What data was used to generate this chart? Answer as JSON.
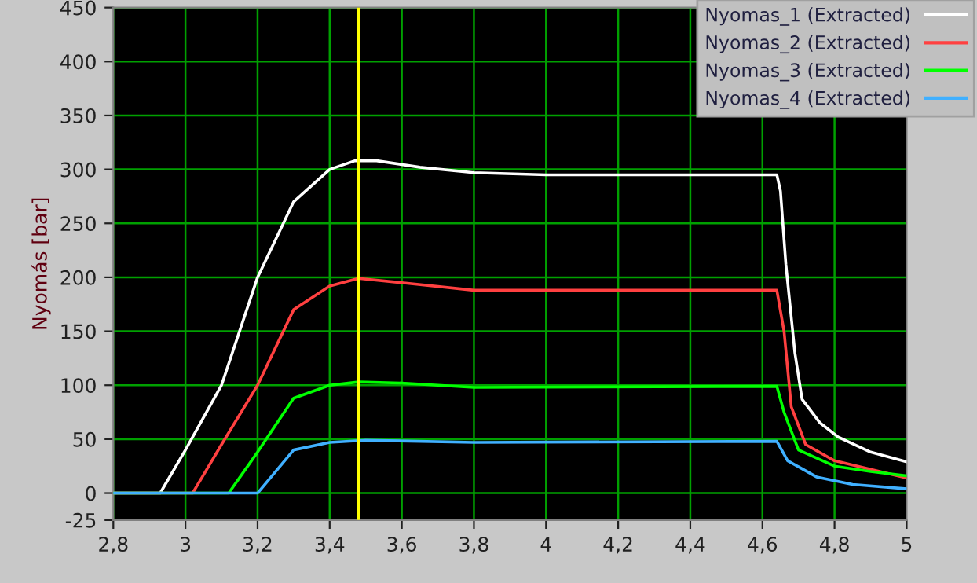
{
  "chart_data": {
    "type": "line",
    "ylabel": "Nyomás [bar]",
    "xlim": [
      2.8,
      5
    ],
    "ylim": [
      -25,
      450
    ],
    "xticks": [
      {
        "value": 2.8,
        "label": "2,8"
      },
      {
        "value": 3,
        "label": "3"
      },
      {
        "value": 3.2,
        "label": "3,2"
      },
      {
        "value": 3.4,
        "label": "3,4"
      },
      {
        "value": 3.6,
        "label": "3,6"
      },
      {
        "value": 3.8,
        "label": "3,8"
      },
      {
        "value": 4,
        "label": "4"
      },
      {
        "value": 4.2,
        "label": "4,2"
      },
      {
        "value": 4.4,
        "label": "4,4"
      },
      {
        "value": 4.6,
        "label": "4,6"
      },
      {
        "value": 4.8,
        "label": "4,8"
      },
      {
        "value": 5,
        "label": "5"
      }
    ],
    "yticks": [
      -25,
      0,
      50,
      100,
      150,
      200,
      250,
      300,
      350,
      400,
      450
    ],
    "grid": true,
    "legend": "top right",
    "marker": "none",
    "line_style": "solid",
    "ref_lines": [
      {
        "axis": "x",
        "value": 3.48,
        "color": "#ffff00"
      }
    ],
    "series": [
      {
        "name": "Nyomas_1 (Extracted)",
        "color": "#ffffff",
        "x": [
          2.8,
          2.93,
          3.0,
          3.1,
          3.2,
          3.3,
          3.4,
          3.47,
          3.53,
          3.65,
          3.8,
          4.0,
          4.64,
          4.65,
          4.665,
          4.69,
          4.71,
          4.76,
          4.81,
          4.9,
          5.0
        ],
        "values": [
          0,
          0,
          40,
          100,
          200,
          270,
          300,
          308,
          308,
          302,
          297,
          295,
          295,
          280,
          212,
          130,
          87,
          65,
          52,
          38,
          29
        ]
      },
      {
        "name": "Nyomas_2 (Extracted)",
        "color": "#ff4040",
        "x": [
          2.8,
          3.02,
          3.1,
          3.2,
          3.3,
          3.4,
          3.48,
          3.6,
          3.8,
          4.64,
          4.66,
          4.68,
          4.72,
          4.8,
          4.9,
          5.0
        ],
        "values": [
          0,
          0,
          45,
          100,
          170,
          192,
          199,
          195,
          188,
          188,
          150,
          80,
          45,
          30,
          22,
          14
        ]
      },
      {
        "name": "Nyomas_3 (Extracted)",
        "color": "#00ff00",
        "x": [
          2.8,
          3.12,
          3.2,
          3.3,
          3.4,
          3.48,
          3.6,
          3.8,
          4.64,
          4.66,
          4.7,
          4.8,
          4.9,
          5.0
        ],
        "values": [
          0,
          0,
          38,
          88,
          100,
          103,
          102,
          98,
          99,
          75,
          40,
          25,
          20,
          16
        ]
      },
      {
        "name": "Nyomas_4 (Extracted)",
        "color": "#40b0ff",
        "x": [
          2.8,
          3.2,
          3.3,
          3.4,
          3.5,
          3.8,
          4.64,
          4.67,
          4.75,
          4.85,
          5.0
        ],
        "values": [
          0,
          0,
          40,
          47,
          49,
          47,
          48,
          30,
          15,
          8,
          4
        ]
      }
    ]
  }
}
